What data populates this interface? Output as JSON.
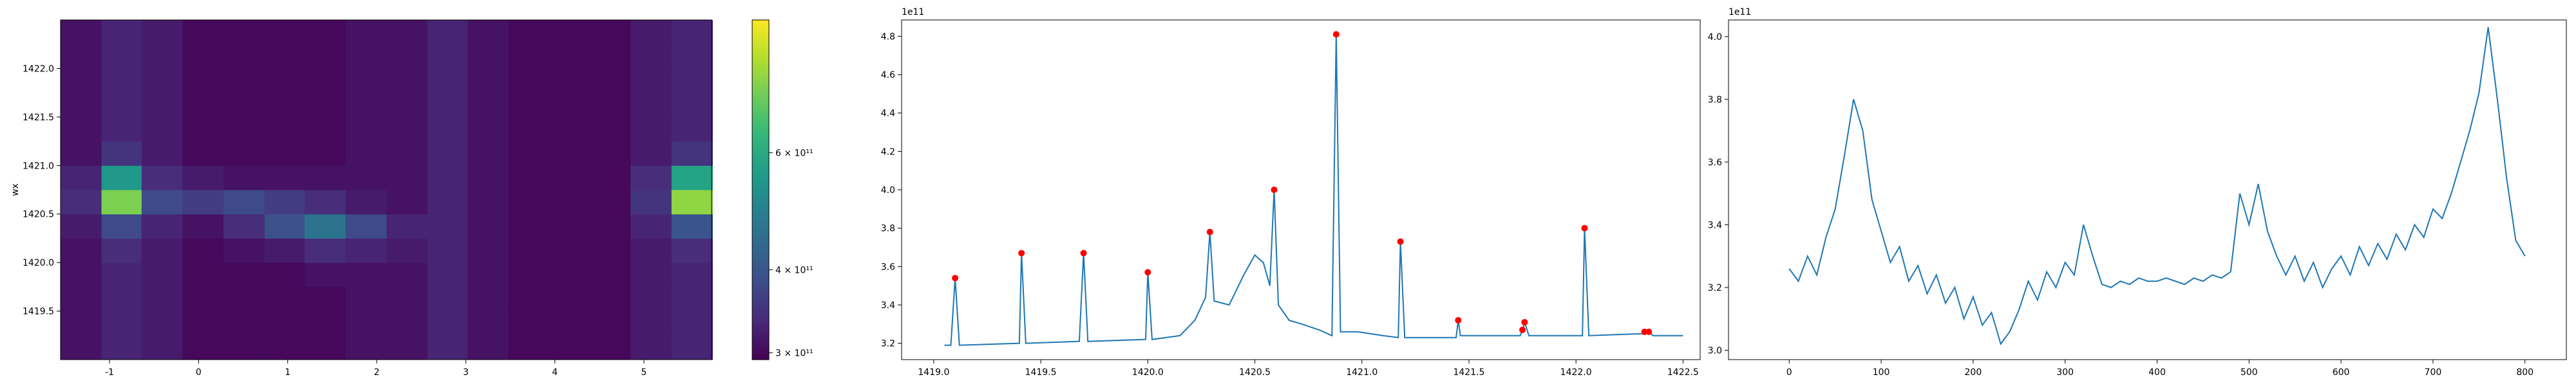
{
  "chart_data": [
    {
      "type": "heatmap",
      "ylabel": "wx",
      "colormap": "viridis",
      "x": [
        -1.32,
        -0.86,
        -0.41,
        0.05,
        0.51,
        0.97,
        1.42,
        1.88,
        2.34,
        2.8,
        3.25,
        3.71,
        4.17,
        4.62,
        5.08,
        5.54
      ],
      "y": [
        1419.125,
        1419.375,
        1419.625,
        1419.875,
        1420.125,
        1420.375,
        1420.625,
        1420.875,
        1421.125,
        1421.375,
        1421.625,
        1421.875,
        1422.125,
        1422.375
      ],
      "z": [
        [
          310000000000.0,
          330000000000.0,
          320000000000.0,
          300000000000.0,
          300000000000.0,
          300000000000.0,
          300000000000.0,
          310000000000.0,
          310000000000.0,
          330000000000.0,
          310000000000.0,
          300000000000.0,
          300000000000.0,
          300000000000.0,
          320000000000.0,
          330000000000.0
        ],
        [
          310000000000.0,
          330000000000.0,
          320000000000.0,
          300000000000.0,
          300000000000.0,
          300000000000.0,
          300000000000.0,
          310000000000.0,
          310000000000.0,
          330000000000.0,
          310000000000.0,
          300000000000.0,
          300000000000.0,
          300000000000.0,
          320000000000.0,
          330000000000.0
        ],
        [
          310000000000.0,
          330000000000.0,
          320000000000.0,
          300000000000.0,
          300000000000.0,
          300000000000.0,
          300000000000.0,
          310000000000.0,
          310000000000.0,
          330000000000.0,
          310000000000.0,
          300000000000.0,
          300000000000.0,
          300000000000.0,
          320000000000.0,
          330000000000.0
        ],
        [
          310000000000.0,
          330000000000.0,
          320000000000.0,
          300000000000.0,
          300000000000.0,
          300000000000.0,
          310000000000.0,
          310000000000.0,
          310000000000.0,
          330000000000.0,
          310000000000.0,
          300000000000.0,
          300000000000.0,
          300000000000.0,
          320000000000.0,
          330000000000.0
        ],
        [
          310000000000.0,
          340000000000.0,
          320000000000.0,
          300000000000.0,
          310000000000.0,
          320000000000.0,
          340000000000.0,
          330000000000.0,
          320000000000.0,
          330000000000.0,
          310000000000.0,
          300000000000.0,
          300000000000.0,
          300000000000.0,
          320000000000.0,
          340000000000.0
        ],
        [
          320000000000.0,
          380000000000.0,
          330000000000.0,
          310000000000.0,
          340000000000.0,
          390000000000.0,
          460000000000.0,
          380000000000.0,
          330000000000.0,
          330000000000.0,
          310000000000.0,
          300000000000.0,
          300000000000.0,
          300000000000.0,
          330000000000.0,
          400000000000.0
        ],
        [
          340000000000.0,
          750000000000.0,
          380000000000.0,
          360000000000.0,
          380000000000.0,
          360000000000.0,
          340000000000.0,
          320000000000.0,
          310000000000.0,
          330000000000.0,
          310000000000.0,
          300000000000.0,
          300000000000.0,
          300000000000.0,
          350000000000.0,
          780000000000.0
        ],
        [
          330000000000.0,
          550000000000.0,
          340000000000.0,
          320000000000.0,
          310000000000.0,
          310000000000.0,
          310000000000.0,
          310000000000.0,
          310000000000.0,
          330000000000.0,
          310000000000.0,
          300000000000.0,
          300000000000.0,
          300000000000.0,
          340000000000.0,
          580000000000.0
        ],
        [
          310000000000.0,
          350000000000.0,
          320000000000.0,
          300000000000.0,
          300000000000.0,
          300000000000.0,
          300000000000.0,
          310000000000.0,
          310000000000.0,
          330000000000.0,
          310000000000.0,
          300000000000.0,
          300000000000.0,
          300000000000.0,
          320000000000.0,
          350000000000.0
        ],
        [
          310000000000.0,
          330000000000.0,
          320000000000.0,
          300000000000.0,
          300000000000.0,
          300000000000.0,
          300000000000.0,
          310000000000.0,
          310000000000.0,
          330000000000.0,
          310000000000.0,
          300000000000.0,
          300000000000.0,
          300000000000.0,
          320000000000.0,
          330000000000.0
        ],
        [
          310000000000.0,
          330000000000.0,
          320000000000.0,
          300000000000.0,
          300000000000.0,
          300000000000.0,
          300000000000.0,
          310000000000.0,
          310000000000.0,
          330000000000.0,
          310000000000.0,
          300000000000.0,
          300000000000.0,
          300000000000.0,
          320000000000.0,
          330000000000.0
        ],
        [
          310000000000.0,
          330000000000.0,
          320000000000.0,
          300000000000.0,
          300000000000.0,
          300000000000.0,
          300000000000.0,
          310000000000.0,
          310000000000.0,
          330000000000.0,
          310000000000.0,
          300000000000.0,
          300000000000.0,
          300000000000.0,
          320000000000.0,
          330000000000.0
        ],
        [
          310000000000.0,
          330000000000.0,
          320000000000.0,
          300000000000.0,
          300000000000.0,
          300000000000.0,
          300000000000.0,
          310000000000.0,
          310000000000.0,
          330000000000.0,
          310000000000.0,
          300000000000.0,
          300000000000.0,
          300000000000.0,
          320000000000.0,
          330000000000.0
        ],
        [
          310000000000.0,
          330000000000.0,
          320000000000.0,
          300000000000.0,
          300000000000.0,
          300000000000.0,
          300000000000.0,
          310000000000.0,
          310000000000.0,
          330000000000.0,
          310000000000.0,
          300000000000.0,
          300000000000.0,
          300000000000.0,
          320000000000.0,
          330000000000.0
        ]
      ],
      "xlim": [
        -1.55,
        5.76
      ],
      "ylim": [
        1419.0,
        1422.5
      ],
      "xticks": [
        -1,
        0,
        1,
        2,
        3,
        4,
        5
      ],
      "yticks": [
        {
          "value": 1419.5,
          "label": "1419.5"
        },
        {
          "value": 1420.0,
          "label": "1420.0"
        },
        {
          "value": 1420.5,
          "label": "1420.5"
        },
        {
          "value": 1421.0,
          "label": "1421.0"
        },
        {
          "value": 1421.5,
          "label": "1421.5"
        },
        {
          "value": 1422.0,
          "label": "1422.0"
        }
      ],
      "colorbar": {
        "scale": "log",
        "lim": [
          293000000000.0,
          950000000000.0
        ],
        "ticks": [
          {
            "value": 300000000000.0,
            "label": "3 × 10¹¹"
          },
          {
            "value": 400000000000.0,
            "label": "4 × 10¹¹"
          },
          {
            "value": 600000000000.0,
            "label": "6 × 10¹¹"
          }
        ]
      }
    },
    {
      "type": "line",
      "color": "#1f77b4",
      "offset_label": "1e11",
      "x": [
        1419.05,
        1419.08,
        1419.1,
        1419.12,
        1419.4,
        1419.41,
        1419.43,
        1419.68,
        1419.7,
        1419.72,
        1419.99,
        1420.0,
        1420.02,
        1420.15,
        1420.22,
        1420.27,
        1420.29,
        1420.31,
        1420.38,
        1420.45,
        1420.5,
        1420.54,
        1420.57,
        1420.59,
        1420.61,
        1420.66,
        1420.72,
        1420.8,
        1420.86,
        1420.88,
        1420.9,
        1420.98,
        1421.1,
        1421.17,
        1421.18,
        1421.2,
        1421.44,
        1421.45,
        1421.46,
        1421.74,
        1421.75,
        1421.76,
        1421.78,
        1422.03,
        1422.04,
        1422.06,
        1422.31,
        1422.32,
        1422.34,
        1422.36,
        1422.5
      ],
      "values": [
        3.19,
        3.19,
        3.54,
        3.19,
        3.2,
        3.67,
        3.2,
        3.21,
        3.67,
        3.21,
        3.22,
        3.57,
        3.22,
        3.24,
        3.32,
        3.44,
        3.78,
        3.42,
        3.4,
        3.56,
        3.66,
        3.62,
        3.5,
        4.0,
        3.4,
        3.32,
        3.3,
        3.27,
        3.24,
        4.81,
        3.26,
        3.26,
        3.24,
        3.23,
        3.73,
        3.23,
        3.23,
        3.32,
        3.24,
        3.24,
        3.27,
        3.31,
        3.24,
        3.24,
        3.8,
        3.24,
        3.25,
        3.26,
        3.26,
        3.24,
        3.24
      ],
      "peak_color": "red",
      "peaks_x": [
        1419.1,
        1419.41,
        1419.7,
        1420.0,
        1420.29,
        1420.59,
        1420.88,
        1421.18,
        1421.45,
        1421.75,
        1421.76,
        1422.04,
        1422.32,
        1422.34
      ],
      "peaks": [
        3.54,
        3.67,
        3.67,
        3.57,
        3.78,
        4.0,
        4.81,
        3.73,
        3.32,
        3.27,
        3.31,
        3.8,
        3.26,
        3.26
      ],
      "xlim": [
        1418.85,
        1422.58
      ],
      "ylim": [
        3.115,
        4.885
      ],
      "xticks": [
        {
          "value": 1419.0,
          "label": "1419.0"
        },
        1419.5,
        {
          "value": 1420.0,
          "label": "1420.0"
        },
        1420.5,
        {
          "value": 1421.0,
          "label": "1421.0"
        },
        1421.5,
        {
          "value": 1422.0,
          "label": "1422.0"
        },
        1422.5
      ],
      "yticks": [
        3.2,
        3.4,
        3.6,
        3.8,
        {
          "value": 4.0,
          "label": "4.0"
        },
        4.2,
        4.4,
        4.6,
        4.8
      ]
    },
    {
      "type": "line",
      "color": "#1f77b4",
      "offset_label": "1e11",
      "x": [
        0,
        10,
        20,
        30,
        40,
        50,
        60,
        70,
        80,
        90,
        100,
        110,
        120,
        130,
        140,
        150,
        160,
        170,
        180,
        190,
        200,
        210,
        220,
        230,
        240,
        250,
        260,
        270,
        280,
        290,
        300,
        310,
        320,
        330,
        340,
        350,
        360,
        370,
        380,
        390,
        400,
        410,
        420,
        430,
        440,
        450,
        460,
        470,
        480,
        490,
        500,
        510,
        520,
        530,
        540,
        550,
        560,
        570,
        580,
        590,
        600,
        610,
        620,
        630,
        640,
        650,
        660,
        670,
        680,
        690,
        700,
        710,
        720,
        730,
        740,
        750,
        760,
        770,
        780,
        790,
        800
      ],
      "values": [
        3.26,
        3.22,
        3.3,
        3.24,
        3.36,
        3.45,
        3.62,
        3.8,
        3.7,
        3.48,
        3.38,
        3.28,
        3.33,
        3.22,
        3.27,
        3.18,
        3.24,
        3.15,
        3.2,
        3.1,
        3.17,
        3.08,
        3.12,
        3.02,
        3.06,
        3.13,
        3.22,
        3.16,
        3.25,
        3.2,
        3.28,
        3.24,
        3.4,
        3.3,
        3.21,
        3.2,
        3.22,
        3.21,
        3.23,
        3.22,
        3.22,
        3.23,
        3.22,
        3.21,
        3.23,
        3.22,
        3.24,
        3.23,
        3.25,
        3.5,
        3.4,
        3.53,
        3.38,
        3.3,
        3.24,
        3.3,
        3.22,
        3.28,
        3.2,
        3.26,
        3.3,
        3.24,
        3.33,
        3.27,
        3.34,
        3.29,
        3.37,
        3.32,
        3.4,
        3.36,
        3.45,
        3.42,
        3.5,
        3.6,
        3.7,
        3.82,
        4.03,
        3.8,
        3.55,
        3.35,
        3.3
      ],
      "xlim": [
        -66,
        845
      ],
      "ylim": [
        2.97,
        4.053
      ],
      "xticks": [
        0,
        100,
        200,
        300,
        400,
        500,
        600,
        700,
        800
      ],
      "yticks": [
        {
          "value": 3.0,
          "label": "3.0"
        },
        3.2,
        3.4,
        3.6,
        3.8,
        {
          "value": 4.0,
          "label": "4.0"
        }
      ]
    }
  ]
}
